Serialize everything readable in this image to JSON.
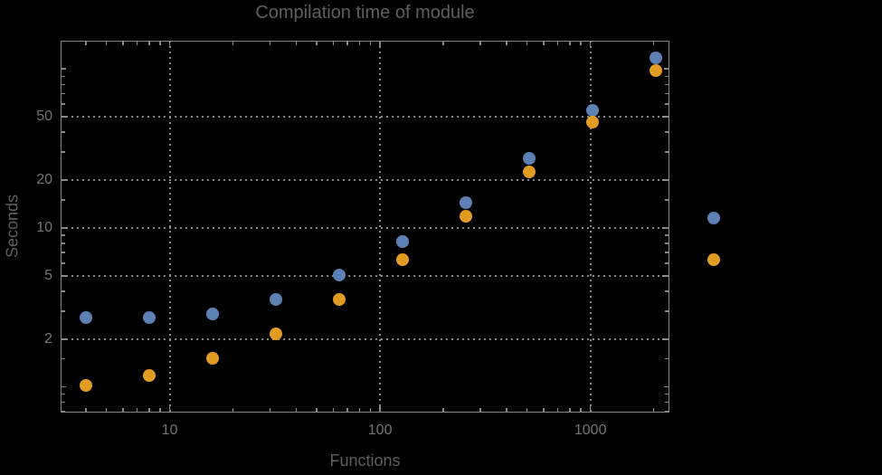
{
  "chart_data": {
    "type": "scatter",
    "title": "Compilation time of module",
    "xlabel": "Functions",
    "ylabel": "Seconds",
    "xscale": "log",
    "yscale": "log",
    "xlim": [
      3.03,
      2374
    ],
    "ylim": [
      0.69,
      150.6
    ],
    "grid": "dotted gridlines at labeled ticks, frame ticks on all four sides",
    "legend_position": "right-outside, markers only (no visible labels)",
    "x": [
      4,
      8,
      16,
      32,
      64,
      128,
      256,
      512,
      1024,
      2048
    ],
    "series": [
      {
        "name": "series-1-blue",
        "color": "#5e81b5",
        "values": [
          2.73,
          2.73,
          2.88,
          3.55,
          5.05,
          8.25,
          14.4,
          27.3,
          54.7,
          117
        ]
      },
      {
        "name": "series-2-orange",
        "color": "#e19c24",
        "values": [
          1.02,
          1.18,
          1.51,
          2.15,
          3.55,
          6.35,
          11.8,
          22.5,
          46.3,
          97.4
        ]
      }
    ],
    "x_ticks_labeled": [
      10,
      100,
      1000
    ],
    "y_ticks_labeled": [
      2,
      5,
      10,
      20,
      50
    ],
    "y_ticks_unlabeled_major": [
      1,
      100
    ],
    "legend_markers": [
      {
        "color": "#5e81b5"
      },
      {
        "color": "#e19c24"
      }
    ]
  },
  "colors": {
    "background": "#000000",
    "frame": "#878787",
    "grid": "#8a8a8a",
    "title_text": "#5f5f5f",
    "axis_label_text": "#5f5f5f",
    "tick_label_text": "#757575"
  }
}
